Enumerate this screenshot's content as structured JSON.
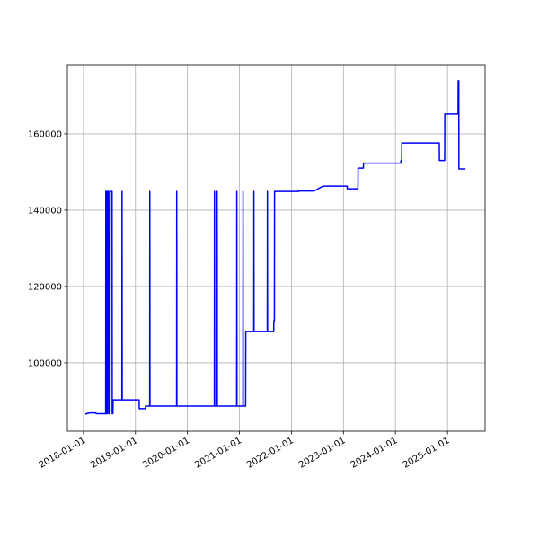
{
  "chart_data": {
    "type": "line",
    "x": [
      "2018-01-14",
      "2018-02-14",
      "2018-03-30",
      "2018-03-31",
      "2018-06-06",
      "2018-06-07",
      "2018-06-12",
      "2018-06-13",
      "2018-06-18",
      "2018-06-19",
      "2018-06-27",
      "2018-06-28",
      "2018-07-06",
      "2018-07-07",
      "2018-07-21",
      "2018-07-22",
      "2018-07-27",
      "2018-07-28",
      "2018-09-28",
      "2018-09-29",
      "2018-09-30",
      "2019-01-27",
      "2019-01-28",
      "2019-03-12",
      "2019-03-13",
      "2019-04-11",
      "2019-04-12",
      "2019-04-13",
      "2019-10-17",
      "2019-10-18",
      "2019-10-19",
      "2020-07-08",
      "2020-07-09",
      "2020-07-10",
      "2020-07-27",
      "2020-07-28",
      "2020-07-29",
      "2020-12-12",
      "2020-12-13",
      "2020-12-14",
      "2021-01-25",
      "2021-01-26",
      "2021-01-27",
      "2021-02-13",
      "2021-02-14",
      "2021-04-11",
      "2021-04-12",
      "2021-04-13",
      "2021-07-15",
      "2021-07-16",
      "2021-07-17",
      "2021-08-29",
      "2021-08-30",
      "2021-09-03",
      "2021-09-04",
      "2022-02-21",
      "2022-02-22",
      "2022-06-08",
      "2022-08-10",
      "2023-01-27",
      "2023-01-28",
      "2023-04-13",
      "2023-04-14",
      "2023-05-21",
      "2023-05-22",
      "2024-02-08",
      "2024-02-09",
      "2024-02-14",
      "2024-02-15",
      "2024-11-04",
      "2024-11-05",
      "2024-12-12",
      "2024-12-13",
      "2025-03-16",
      "2025-03-17",
      "2025-03-21",
      "2025-03-22",
      "2025-05-07"
    ],
    "series": [
      {
        "color": "#0000ff",
        "values": [
          86600,
          86900,
          86900,
          86700,
          86700,
          144900,
          144900,
          86700,
          86700,
          144900,
          144900,
          86700,
          86700,
          144900,
          144900,
          86700,
          86700,
          90300,
          90300,
          144900,
          90300,
          90300,
          88000,
          88000,
          88700,
          88700,
          144900,
          88700,
          88700,
          144900,
          88700,
          88700,
          144900,
          88700,
          88700,
          144900,
          88700,
          88700,
          144900,
          88700,
          88700,
          144900,
          88700,
          88700,
          108200,
          108200,
          144900,
          108200,
          108200,
          144900,
          108200,
          108200,
          111000,
          111000,
          144900,
          144900,
          145000,
          145000,
          146300,
          146300,
          145600,
          145600,
          151000,
          151000,
          152300,
          152300,
          153000,
          153000,
          157600,
          157600,
          153000,
          153000,
          165200,
          165200,
          173900,
          173900,
          150800,
          150800
        ]
      }
    ],
    "xlim": [
      "2017-09-10",
      "2025-09-22"
    ],
    "xticks": [
      "2018-01-01",
      "2019-01-01",
      "2020-01-01",
      "2021-01-01",
      "2022-01-01",
      "2023-01-01",
      "2024-01-01",
      "2025-01-01"
    ],
    "ylim": [
      82100,
      178100
    ],
    "yticks": [
      100000,
      120000,
      140000,
      160000
    ],
    "grid": true
  }
}
